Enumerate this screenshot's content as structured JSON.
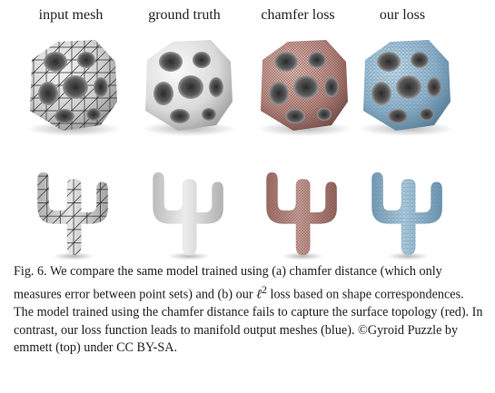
{
  "columns": [
    {
      "label": "input mesh",
      "mesh_color": "#c8c8c8",
      "line_color": "#3a3a3a"
    },
    {
      "label": "ground truth",
      "mesh_color": "#d6d6d6",
      "line_color": "none"
    },
    {
      "label": "chamfer loss",
      "mesh_color": "#b88a82",
      "line_color": "#7a4f49"
    },
    {
      "label": "our loss",
      "mesh_color": "#8fb1c9",
      "line_color": "#5f8aa6"
    }
  ],
  "caption": {
    "label": "Fig. 6.",
    "body_before": "We compare the same model trained using (a) chamfer distance (which only measures error between point sets) and (b) our ",
    "ell_symbol": "ℓ",
    "superscript": "2",
    "body_after": " loss based on shape correspondences. The model trained using the chamfer distance fails to capture the surface topology (red). In contrast, our loss function leads to manifold output meshes (blue). ©Gyroid Puzzle by emmett (top) under CC BY-SA."
  }
}
